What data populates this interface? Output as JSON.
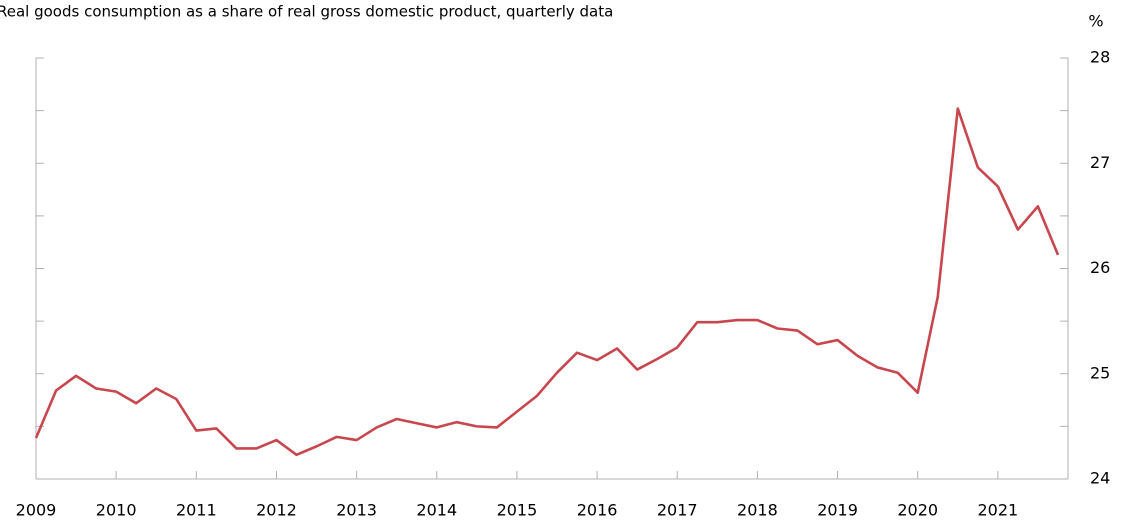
{
  "chart_data": {
    "type": "line",
    "title": "Real goods consumption as a share of real gross domestic product, quarterly data",
    "y_unit": "%",
    "categories": [
      "2009",
      null,
      null,
      null,
      "2010",
      null,
      null,
      null,
      "2011",
      null,
      null,
      null,
      "2012",
      null,
      null,
      null,
      "2013",
      null,
      null,
      null,
      "2014",
      null,
      null,
      null,
      "2015",
      null,
      null,
      null,
      "2016",
      null,
      null,
      null,
      "2017",
      null,
      null,
      null,
      "2018",
      null,
      null,
      null,
      "2019",
      null,
      null,
      null,
      "2020",
      null,
      null,
      null,
      "2021",
      null,
      null,
      null
    ],
    "series": [
      {
        "color": "#c8474f",
        "values": [
          24.39,
          24.84,
          24.98,
          24.86,
          24.83,
          24.72,
          24.86,
          24.76,
          24.46,
          24.48,
          24.29,
          24.29,
          24.37,
          24.23,
          24.31,
          24.4,
          24.37,
          24.49,
          24.57,
          24.53,
          24.49,
          24.54,
          24.5,
          24.49,
          24.64,
          24.79,
          25.01,
          25.2,
          25.13,
          25.24,
          25.04,
          25.14,
          25.25,
          25.49,
          25.49,
          25.51,
          25.51,
          25.43,
          25.41,
          25.28,
          25.32,
          25.17,
          25.06,
          25.01,
          24.82,
          25.73,
          27.52,
          26.96,
          26.78,
          26.37,
          26.59,
          26.13
        ]
      }
    ],
    "ylim": [
      24,
      28
    ],
    "yticks": [
      24,
      25,
      26,
      27,
      28
    ],
    "minor_yticks": [
      24.5,
      25.5,
      26.5,
      27.5
    ]
  }
}
